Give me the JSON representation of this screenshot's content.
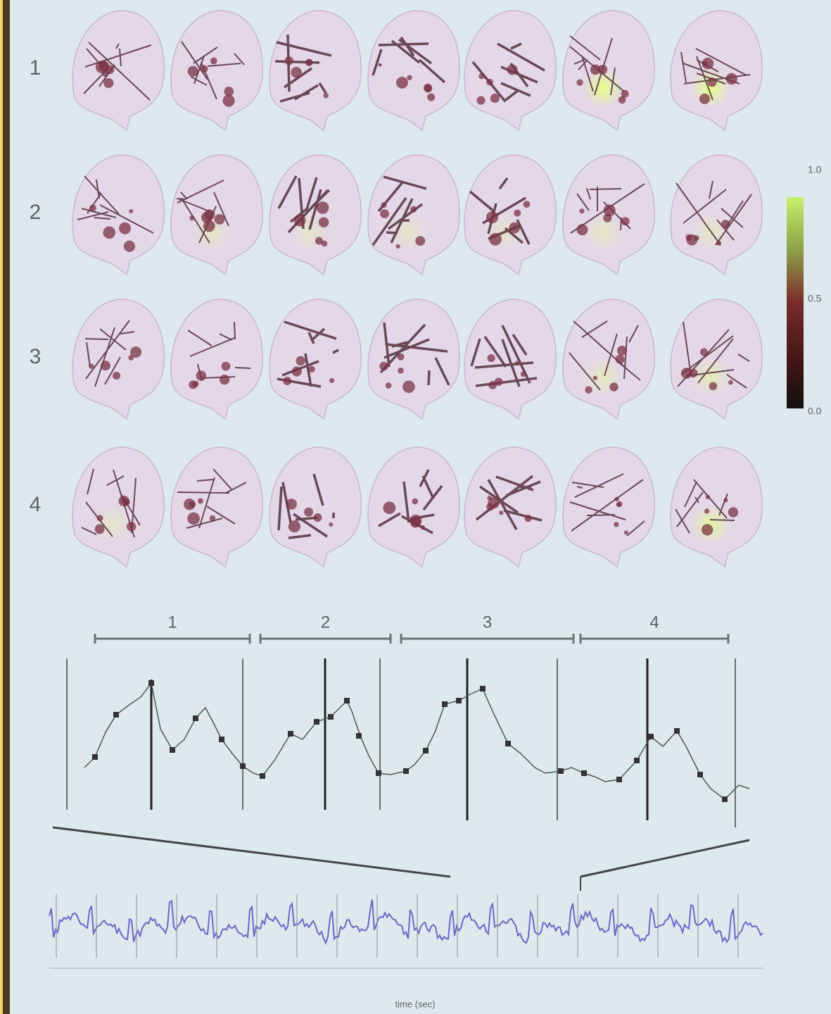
{
  "row_labels": [
    "1",
    "2",
    "3",
    "4"
  ],
  "colorbar": {
    "labels": [
      "1.0",
      "0.5",
      "0.0"
    ]
  },
  "segment_labels": [
    "1",
    "2",
    "3",
    "4"
  ],
  "x_axis_label": "time (sec)"
}
